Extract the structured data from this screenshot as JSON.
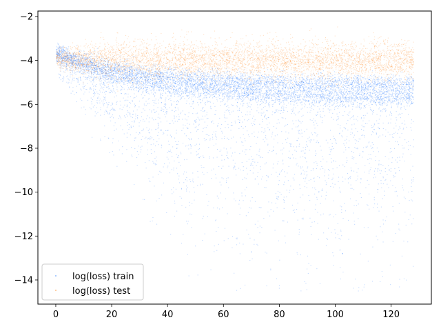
{
  "chart_data": {
    "type": "scatter",
    "title": "",
    "xlabel": "",
    "ylabel": "",
    "xlim": [
      -6.4,
      134.4
    ],
    "ylim": [
      -15.1,
      -1.75
    ],
    "x_ticks": [
      0,
      20,
      40,
      60,
      80,
      100,
      120
    ],
    "y_ticks": [
      -14,
      -12,
      -10,
      -8,
      -6,
      -4,
      -2
    ],
    "x_tick_labels": [
      "0",
      "20",
      "40",
      "60",
      "80",
      "100",
      "120"
    ],
    "y_tick_labels": [
      "−14",
      "−12",
      "−10",
      "−8",
      "−6",
      "−4",
      "−2"
    ],
    "grid": false,
    "legend_position": "lower-left",
    "x_range_of_points": [
      0,
      128
    ],
    "series": [
      {
        "name": "log(loss) train",
        "color": "#1f77ff",
        "description_values": {
          "start_y": -3.6,
          "dense_band_upper_end_y": -5.1,
          "dense_band_lower_end_y": -5.7,
          "sparse_tail_min_y": -14.5
        }
      },
      {
        "name": "log(loss) test",
        "color": "#ff7f0e",
        "description_values": {
          "start_y": -3.9,
          "band_center_end_y": -4.0,
          "band_spread": 0.45
        }
      }
    ]
  }
}
